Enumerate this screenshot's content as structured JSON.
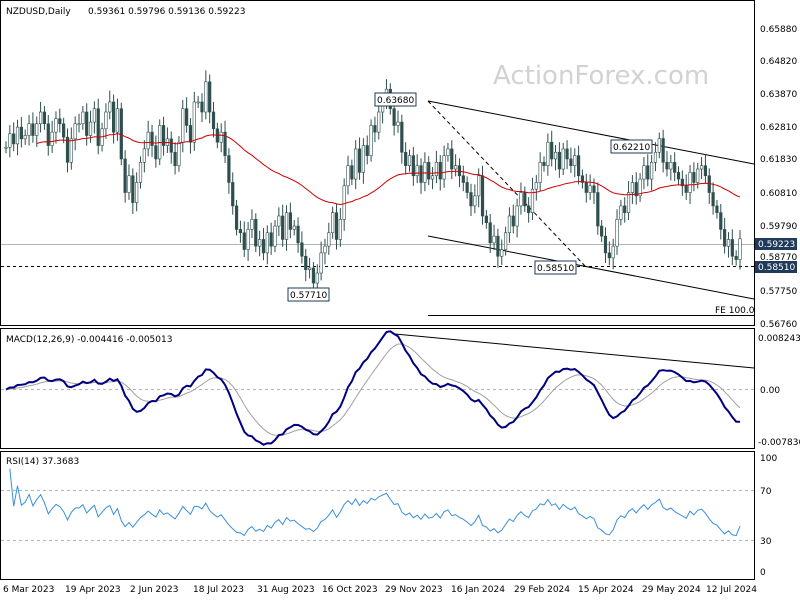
{
  "header": {
    "symbol": "NZDUSD,Daily",
    "ohlc": "0.59361 0.59796 0.59136 0.59223"
  },
  "watermark": "ActionForex.com",
  "colors": {
    "candle": "#2f4f4f",
    "ma": "#cc0000",
    "macd": "#000080",
    "signal": "#a0a0a0",
    "rsi": "#3a8fd9",
    "trend": "#000000",
    "label_bg": "#1f3a5a"
  },
  "chart_data": [
    {
      "type": "candlestick",
      "title": "NZDUSD,Daily",
      "subtitle": "0.59361 0.59796 0.59136 0.59223",
      "y_ticks": [
        "0.65880",
        "0.64820",
        "0.63870",
        "0.62810",
        "0.61830",
        "0.60810",
        "0.59790",
        "0.58770",
        "0.57750",
        "0.56760"
      ],
      "ylim": [
        0.5665,
        0.6628
      ],
      "x_ticks": [
        "6 Mar 2023",
        "19 Apr 2023",
        "2 Jun 2023",
        "18 Jul 2023",
        "31 Aug 2023",
        "16 Oct 2023",
        "29 Nov 2023",
        "16 Jan 2024",
        "29 Feb 2024",
        "15 Apr 2024",
        "29 May 2024",
        "12 Jul 2024"
      ],
      "closes": [
        0.6195,
        0.6235,
        0.6205,
        0.6255,
        0.622,
        0.623,
        0.6265,
        0.623,
        0.6265,
        0.63,
        0.6265,
        0.62,
        0.624,
        0.628,
        0.6265,
        0.6225,
        0.615,
        0.622,
        0.6265,
        0.6265,
        0.63,
        0.623,
        0.627,
        0.631,
        0.62,
        0.625,
        0.63,
        0.633,
        0.624,
        0.631,
        0.616,
        0.606,
        0.611,
        0.603,
        0.609,
        0.615,
        0.619,
        0.624,
        0.62,
        0.616,
        0.626,
        0.62,
        0.622,
        0.618,
        0.614,
        0.621,
        0.631,
        0.626,
        0.621,
        0.633,
        0.633,
        0.63,
        0.639,
        0.63,
        0.625,
        0.621,
        0.624,
        0.617,
        0.609,
        0.602,
        0.595,
        0.594,
        0.589,
        0.595,
        0.598,
        0.59,
        0.592,
        0.588,
        0.594,
        0.59,
        0.596,
        0.599,
        0.592,
        0.6,
        0.595,
        0.596,
        0.591,
        0.587,
        0.583,
        0.5835,
        0.579,
        0.582,
        0.588,
        0.59,
        0.594,
        0.6,
        0.592,
        0.598,
        0.608,
        0.614,
        0.61,
        0.619,
        0.612,
        0.62,
        0.617,
        0.626,
        0.624,
        0.63,
        0.6335,
        0.6368,
        0.631,
        0.626,
        0.627,
        0.618,
        0.614,
        0.617,
        0.611,
        0.614,
        0.609,
        0.615,
        0.61,
        0.611,
        0.615,
        0.61,
        0.617,
        0.619,
        0.613,
        0.614,
        0.611,
        0.609,
        0.606,
        0.602,
        0.605,
        0.611,
        0.599,
        0.597,
        0.591,
        0.593,
        0.587,
        0.589,
        0.594,
        0.599,
        0.596,
        0.602,
        0.606,
        0.602,
        0.6,
        0.607,
        0.609,
        0.615,
        0.614,
        0.621,
        0.616,
        0.618,
        0.613,
        0.619,
        0.616,
        0.614,
        0.617,
        0.611,
        0.609,
        0.606,
        0.608,
        0.606,
        0.596,
        0.593,
        0.588,
        0.5865,
        0.59,
        0.598,
        0.602,
        0.6,
        0.606,
        0.609,
        0.605,
        0.61,
        0.614,
        0.61,
        0.615,
        0.618,
        0.6221,
        0.615,
        0.613,
        0.615,
        0.612,
        0.61,
        0.608,
        0.606,
        0.612,
        0.609,
        0.613,
        0.614,
        0.611,
        0.606,
        0.602,
        0.6,
        0.595,
        0.59,
        0.592,
        0.587,
        0.586,
        0.5922
      ],
      "ma_period": 55,
      "annotations": [
        "0.63680",
        "0.62210",
        "0.58510",
        "0.57710",
        "FE 100.0"
      ],
      "price_tags": [
        "0.59223",
        "0.58510"
      ],
      "levels": {
        "current": 0.59223,
        "support": 0.5851,
        "fe100": 0.5688,
        "high": 0.6368,
        "high2": 0.6221,
        "low": 0.5771
      }
    },
    {
      "type": "line",
      "title": "MACD(12,26,9) -0.004416 -0.005013",
      "y_ticks": [
        "0.008243",
        "0.00",
        "-0.007836"
      ],
      "ylim": [
        -0.0092,
        0.0092
      ],
      "series": [
        {
          "name": "MACD"
        },
        {
          "name": "Signal"
        }
      ]
    },
    {
      "type": "line",
      "title": "RSI(14) 37.3683",
      "y_ticks": [
        "100",
        "70",
        "30",
        "0"
      ],
      "ylim": [
        0,
        100
      ]
    }
  ]
}
